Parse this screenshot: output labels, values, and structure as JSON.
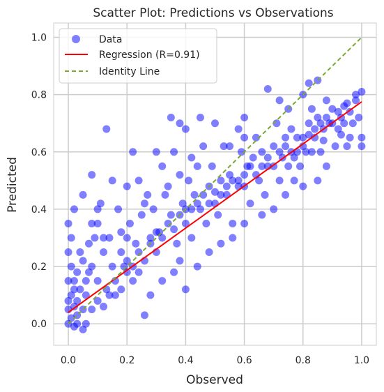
{
  "chart_data": {
    "type": "scatter",
    "title": "Scatter Plot: Predictions vs Observations",
    "xlabel": "Observed",
    "ylabel": "Predicted",
    "xlim": [
      -0.05,
      1.05
    ],
    "ylim": [
      -0.075,
      1.05
    ],
    "xticks": [
      0.0,
      0.2,
      0.4,
      0.6,
      0.8,
      1.0
    ],
    "yticks": [
      0.0,
      0.2,
      0.4,
      0.6,
      0.8,
      1.0
    ],
    "xtick_labels": [
      "0.0",
      "0.2",
      "0.4",
      "0.6",
      "0.8",
      "1.0"
    ],
    "ytick_labels": [
      "0.0",
      "0.2",
      "0.4",
      "0.6",
      "0.8",
      "1.0"
    ],
    "grid": true,
    "legend_position": "top-left",
    "series": [
      {
        "name": "Data",
        "kind": "scatter",
        "color": "#0000ff",
        "opacity": 0.5,
        "points": [
          [
            0.0,
            0.0
          ],
          [
            0.01,
            0.02
          ],
          [
            0.02,
            -0.01
          ],
          [
            0.0,
            0.05
          ],
          [
            0.03,
            0.03
          ],
          [
            0.01,
            0.1
          ],
          [
            0.02,
            0.15
          ],
          [
            0.0,
            0.25
          ],
          [
            0.0,
            0.35
          ],
          [
            0.01,
            0.2
          ],
          [
            0.03,
            0.08
          ],
          [
            0.04,
            0.12
          ],
          [
            0.05,
            0.05
          ],
          [
            0.02,
            0.06
          ],
          [
            0.06,
            0.1
          ],
          [
            0.07,
            0.18
          ],
          [
            0.08,
            0.2
          ],
          [
            0.05,
            0.22
          ],
          [
            0.1,
            0.15
          ],
          [
            0.09,
            0.3
          ],
          [
            0.12,
            0.25
          ],
          [
            0.1,
            0.35
          ],
          [
            0.11,
            0.42
          ],
          [
            0.13,
            0.12
          ],
          [
            0.15,
            0.2
          ],
          [
            0.14,
            0.3
          ],
          [
            0.13,
            0.68
          ],
          [
            0.08,
            0.52
          ],
          [
            0.02,
            0.4
          ],
          [
            0.05,
            0.45
          ],
          [
            0.16,
            0.1
          ],
          [
            0.18,
            0.25
          ],
          [
            0.2,
            0.3
          ],
          [
            0.19,
            0.2
          ],
          [
            0.22,
            0.15
          ],
          [
            0.21,
            0.35
          ],
          [
            0.23,
            0.28
          ],
          [
            0.25,
            0.38
          ],
          [
            0.24,
            0.5
          ],
          [
            0.22,
            0.6
          ],
          [
            0.26,
            0.42
          ],
          [
            0.28,
            0.3
          ],
          [
            0.3,
            0.25
          ],
          [
            0.29,
            0.4
          ],
          [
            0.31,
            0.32
          ],
          [
            0.33,
            0.45
          ],
          [
            0.35,
            0.38
          ],
          [
            0.34,
            0.48
          ],
          [
            0.32,
            0.55
          ],
          [
            0.36,
            0.6
          ],
          [
            0.37,
            0.28
          ],
          [
            0.38,
            0.22
          ],
          [
            0.4,
            0.35
          ],
          [
            0.39,
            0.42
          ],
          [
            0.41,
            0.5
          ],
          [
            0.42,
            0.3
          ],
          [
            0.43,
            0.45
          ],
          [
            0.44,
            0.55
          ],
          [
            0.45,
            0.4
          ],
          [
            0.46,
            0.62
          ],
          [
            0.47,
            0.35
          ],
          [
            0.48,
            0.48
          ],
          [
            0.5,
            0.42
          ],
          [
            0.49,
            0.55
          ],
          [
            0.51,
            0.38
          ],
          [
            0.52,
            0.5
          ],
          [
            0.53,
            0.62
          ],
          [
            0.54,
            0.45
          ],
          [
            0.55,
            0.52
          ],
          [
            0.56,
            0.35
          ],
          [
            0.58,
            0.5
          ],
          [
            0.6,
            0.48
          ],
          [
            0.59,
            0.6
          ],
          [
            0.61,
            0.55
          ],
          [
            0.62,
            0.42
          ],
          [
            0.63,
            0.58
          ],
          [
            0.64,
            0.65
          ],
          [
            0.65,
            0.5
          ],
          [
            0.66,
            0.6
          ],
          [
            0.67,
            0.45
          ],
          [
            0.68,
            0.55
          ],
          [
            0.7,
            0.62
          ],
          [
            0.72,
            0.5
          ],
          [
            0.71,
            0.7
          ],
          [
            0.73,
            0.58
          ],
          [
            0.74,
            0.65
          ],
          [
            0.75,
            0.55
          ],
          [
            0.76,
            0.68
          ],
          [
            0.78,
            0.6
          ],
          [
            0.77,
            0.5
          ],
          [
            0.8,
            0.65
          ],
          [
            0.79,
            0.55
          ],
          [
            0.82,
            0.7
          ],
          [
            0.81,
            0.6
          ],
          [
            0.83,
            0.75
          ],
          [
            0.84,
            0.65
          ],
          [
            0.85,
            0.72
          ],
          [
            0.86,
            0.6
          ],
          [
            0.87,
            0.68
          ],
          [
            0.88,
            0.78
          ],
          [
            0.89,
            0.7
          ],
          [
            0.9,
            0.75
          ],
          [
            0.91,
            0.62
          ],
          [
            0.92,
            0.68
          ],
          [
            0.93,
            0.72
          ],
          [
            0.94,
            0.7
          ],
          [
            0.95,
            0.77
          ],
          [
            0.96,
            0.65
          ],
          [
            0.98,
            0.8
          ],
          [
            1.0,
            0.81
          ],
          [
            0.99,
            0.72
          ],
          [
            1.0,
            0.65
          ],
          [
            1.0,
            0.62
          ],
          [
            0.95,
            0.62
          ],
          [
            0.88,
            0.55
          ],
          [
            0.85,
            0.5
          ],
          [
            0.8,
            0.48
          ],
          [
            0.74,
            0.45
          ],
          [
            0.7,
            0.4
          ],
          [
            0.66,
            0.38
          ],
          [
            0.6,
            0.35
          ],
          [
            0.56,
            0.3
          ],
          [
            0.52,
            0.28
          ],
          [
            0.48,
            0.25
          ],
          [
            0.44,
            0.2
          ],
          [
            0.4,
            0.12
          ],
          [
            0.36,
            0.18
          ],
          [
            0.32,
            0.15
          ],
          [
            0.28,
            0.1
          ],
          [
            0.26,
            0.03
          ],
          [
            0.3,
            0.6
          ],
          [
            0.35,
            0.72
          ],
          [
            0.38,
            0.7
          ],
          [
            0.4,
            0.68
          ],
          [
            0.45,
            0.72
          ],
          [
            0.5,
            0.7
          ],
          [
            0.6,
            0.72
          ],
          [
            0.68,
            0.82
          ],
          [
            0.72,
            0.78
          ],
          [
            0.82,
            0.84
          ],
          [
            0.85,
            0.85
          ],
          [
            0.8,
            0.8
          ],
          [
            0.75,
            0.75
          ],
          [
            0.6,
            0.65
          ],
          [
            0.55,
            0.62
          ],
          [
            0.58,
            0.68
          ],
          [
            0.42,
            0.58
          ],
          [
            0.38,
            0.52
          ],
          [
            0.27,
            0.45
          ],
          [
            0.2,
            0.48
          ],
          [
            0.17,
            0.4
          ],
          [
            0.15,
            0.5
          ],
          [
            0.18,
            0.32
          ],
          [
            0.2,
            0.22
          ],
          [
            0.24,
            0.18
          ],
          [
            0.12,
            0.3
          ],
          [
            0.1,
            0.4
          ],
          [
            0.08,
            0.35
          ],
          [
            0.07,
            0.28
          ],
          [
            0.06,
            0.15
          ],
          [
            0.04,
            0.25
          ],
          [
            0.03,
            0.18
          ],
          [
            0.02,
            0.12
          ],
          [
            0.01,
            0.3
          ],
          [
            0.0,
            0.15
          ],
          [
            0.0,
            0.08
          ],
          [
            0.03,
            0.0
          ],
          [
            0.05,
            -0.02
          ],
          [
            0.06,
            0.0
          ],
          [
            0.08,
            0.05
          ],
          [
            0.1,
            0.08
          ],
          [
            0.12,
            0.06
          ],
          [
            0.14,
            0.1
          ],
          [
            0.16,
            0.15
          ],
          [
            0.18,
            0.12
          ],
          [
            0.2,
            0.18
          ],
          [
            0.22,
            0.2
          ],
          [
            0.24,
            0.25
          ],
          [
            0.26,
            0.22
          ],
          [
            0.28,
            0.28
          ],
          [
            0.3,
            0.32
          ],
          [
            0.32,
            0.3
          ],
          [
            0.34,
            0.35
          ],
          [
            0.36,
            0.33
          ],
          [
            0.38,
            0.38
          ],
          [
            0.4,
            0.4
          ],
          [
            0.42,
            0.4
          ],
          [
            0.44,
            0.42
          ],
          [
            0.46,
            0.45
          ],
          [
            0.48,
            0.42
          ],
          [
            0.5,
            0.46
          ],
          [
            0.52,
            0.45
          ],
          [
            0.54,
            0.48
          ],
          [
            0.56,
            0.5
          ],
          [
            0.58,
            0.48
          ],
          [
            0.6,
            0.52
          ],
          [
            0.62,
            0.55
          ],
          [
            0.64,
            0.52
          ],
          [
            0.66,
            0.55
          ],
          [
            0.68,
            0.58
          ],
          [
            0.7,
            0.55
          ],
          [
            0.72,
            0.6
          ],
          [
            0.74,
            0.62
          ],
          [
            0.76,
            0.6
          ],
          [
            0.78,
            0.65
          ],
          [
            0.8,
            0.62
          ],
          [
            0.82,
            0.66
          ],
          [
            0.84,
            0.68
          ],
          [
            0.86,
            0.7
          ],
          [
            0.88,
            0.72
          ],
          [
            0.9,
            0.7
          ],
          [
            0.92,
            0.74
          ],
          [
            0.94,
            0.76
          ],
          [
            0.96,
            0.74
          ],
          [
            0.98,
            0.78
          ],
          [
            0.97,
            0.7
          ],
          [
            0.93,
            0.66
          ],
          [
            0.87,
            0.64
          ],
          [
            0.83,
            0.6
          ],
          [
            0.77,
            0.58
          ]
        ]
      },
      {
        "name": "Regression (R=0.91)",
        "kind": "line",
        "color": "#ff0000",
        "dash": "solid",
        "x": [
          0.0,
          1.0
        ],
        "y": [
          0.04,
          0.775
        ]
      },
      {
        "name": "Identity Line",
        "kind": "line",
        "color": "#7aa832",
        "dash": "dashed",
        "x": [
          0.0,
          1.0
        ],
        "y": [
          0.0,
          1.0
        ]
      }
    ]
  }
}
